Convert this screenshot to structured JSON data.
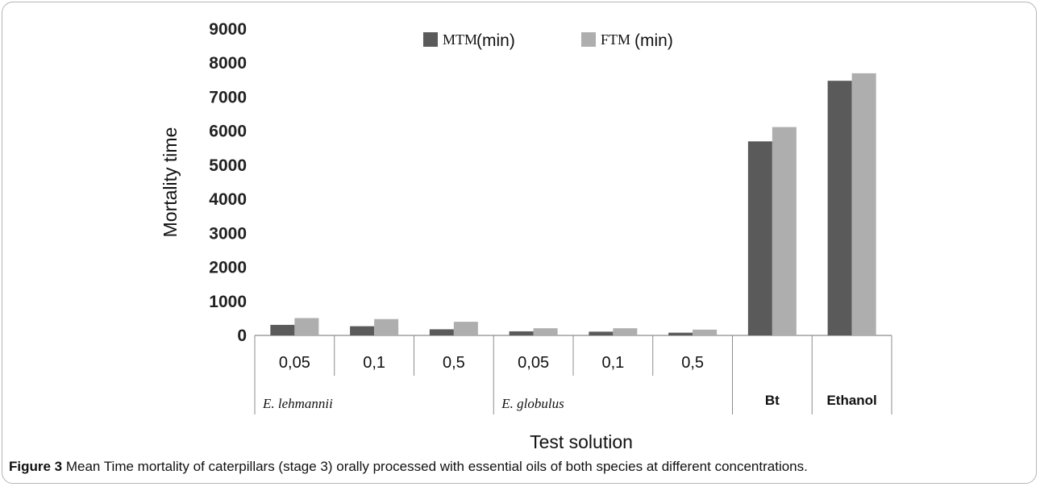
{
  "chart_data": {
    "type": "bar",
    "ylabel": "Mortality time",
    "xlabel": "Test solution",
    "ylim": [
      0,
      9000
    ],
    "yticks": [
      "0",
      "1000",
      "2000",
      "3000",
      "4000",
      "5000",
      "6000",
      "7000",
      "8000",
      "9000"
    ],
    "categories": [
      "0,05",
      "0,1",
      "0,5",
      "0,05",
      "0,1",
      "0,5",
      "",
      ""
    ],
    "groups": [
      {
        "label": "E. lehmannii",
        "span": [
          0,
          2
        ],
        "style": "italic"
      },
      {
        "label": "E. globulus",
        "span": [
          3,
          5
        ],
        "style": "italic"
      },
      {
        "label": "Bt",
        "span": [
          6,
          6
        ],
        "style": "bold"
      },
      {
        "label": "Ethanol",
        "span": [
          7,
          7
        ],
        "style": "bold"
      }
    ],
    "series": [
      {
        "name": "MTM",
        "unit": "(min)",
        "color": "#5a5a5a",
        "values": [
          310,
          270,
          180,
          120,
          110,
          80,
          5700,
          7480
        ]
      },
      {
        "name": "FTM",
        "unit": "(min)",
        "color": "#aeaeae",
        "values": [
          510,
          480,
          400,
          210,
          210,
          170,
          6120,
          7700
        ]
      }
    ],
    "legend_position": "top-center",
    "grid": false
  },
  "caption": {
    "label": "Figure 3",
    "text": " Mean Time mortality of caterpillars (stage 3) orally processed with essential oils of both species at different concentrations."
  }
}
